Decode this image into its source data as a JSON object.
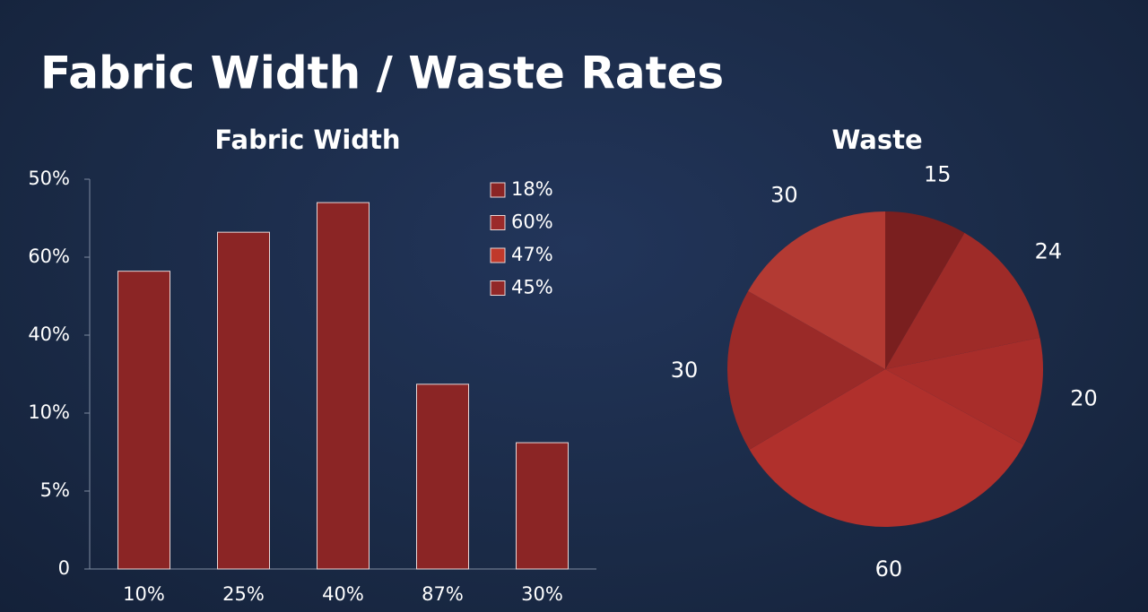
{
  "title": "Fabric Width / Waste Rates",
  "chart_data": [
    {
      "type": "bar",
      "title": "Fabric Width",
      "categories": [
        "10%",
        "25%",
        "40%",
        "87%",
        "30%"
      ],
      "values": [
        38.2,
        43.2,
        47.0,
        23.7,
        16.2
      ],
      "color": "#8b2525",
      "ylim": [
        0,
        50
      ],
      "yticks": [
        0,
        {
          "value": 10,
          "label": "5%"
        },
        {
          "value": 20,
          "label": "10%"
        },
        {
          "value": 30,
          "label": "40%"
        },
        {
          "value": 40,
          "label": "60%"
        },
        {
          "value": 50,
          "label": "50%"
        }
      ],
      "legend": [
        {
          "label": "18%",
          "color": "#8b2525"
        },
        {
          "label": "60%",
          "color": "#9b2a2a"
        },
        {
          "label": "47%",
          "color": "#c0392b"
        },
        {
          "label": "45%",
          "color": "#922828"
        }
      ]
    },
    {
      "type": "pie",
      "title": "Waste",
      "values": [
        15,
        24,
        20,
        60,
        30,
        30
      ],
      "colors": [
        "#7a1f1f",
        "#9e2b28",
        "#a82d2a",
        "#b0302c",
        "#9a2a28",
        "#b33a33"
      ]
    }
  ]
}
